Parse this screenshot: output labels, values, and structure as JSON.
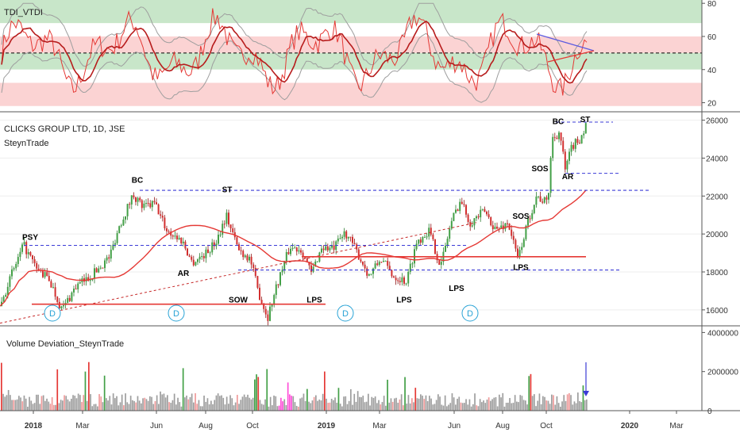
{
  "chart_data": [
    {
      "type": "line",
      "title": "TDI_VTDI",
      "y_ticks": [
        20,
        40,
        60,
        80
      ],
      "ylim": [
        15,
        82
      ],
      "bands": [
        {
          "from": 68,
          "to": 82,
          "color": "#c8e6c9"
        },
        {
          "from": 60,
          "to": 68,
          "color": "#ffffff"
        },
        {
          "from": 50,
          "to": 60,
          "color": "#fbd3d3"
        },
        {
          "from": 40,
          "to": 50,
          "color": "#c8e6c9"
        },
        {
          "from": 32,
          "to": 40,
          "color": "#ffffff"
        },
        {
          "from": 18,
          "to": 32,
          "color": "#fbd3d3"
        }
      ],
      "midline": 50
    },
    {
      "type": "candlestick",
      "title": "CLICKS GROUP LTD, 1D, JSE",
      "subtitle": "SteynTrade",
      "y_ticks": [
        16000,
        18000,
        20000,
        22000,
        24000,
        26000
      ],
      "ylim": [
        15200,
        26400
      ],
      "x_ticks": [
        "2018",
        "Mar",
        "Jun",
        "Aug",
        "Oct",
        "2019",
        "Mar",
        "Jun",
        "Aug",
        "Oct",
        "2020",
        "Mar"
      ],
      "price_path": [
        [
          0,
          16200
        ],
        [
          12,
          17600
        ],
        [
          30,
          19400
        ],
        [
          45,
          18200
        ],
        [
          62,
          17600
        ],
        [
          78,
          16000
        ],
        [
          95,
          17200
        ],
        [
          115,
          17800
        ],
        [
          138,
          18800
        ],
        [
          150,
          20400
        ],
        [
          168,
          22100
        ],
        [
          180,
          21400
        ],
        [
          195,
          21600
        ],
        [
          210,
          20200
        ],
        [
          230,
          19600
        ],
        [
          242,
          18500
        ],
        [
          260,
          19000
        ],
        [
          272,
          19600
        ],
        [
          285,
          21000
        ],
        [
          300,
          19200
        ],
        [
          315,
          18700
        ],
        [
          325,
          17000
        ],
        [
          337,
          15600
        ],
        [
          350,
          17500
        ],
        [
          365,
          19300
        ],
        [
          380,
          19200
        ],
        [
          392,
          17900
        ],
        [
          405,
          19300
        ],
        [
          420,
          19200
        ],
        [
          435,
          20100
        ],
        [
          450,
          19000
        ],
        [
          465,
          17800
        ],
        [
          480,
          18700
        ],
        [
          495,
          17800
        ],
        [
          512,
          17500
        ],
        [
          525,
          19600
        ],
        [
          540,
          20200
        ],
        [
          555,
          18300
        ],
        [
          568,
          20600
        ],
        [
          580,
          21800
        ],
        [
          592,
          20600
        ],
        [
          610,
          21200
        ],
        [
          625,
          20200
        ],
        [
          640,
          20600
        ],
        [
          652,
          18700
        ],
        [
          664,
          20500
        ],
        [
          675,
          22000
        ],
        [
          690,
          21600
        ],
        [
          695,
          25000
        ],
        [
          705,
          25400
        ],
        [
          712,
          23300
        ],
        [
          720,
          24600
        ],
        [
          730,
          25000
        ],
        [
          738,
          25700
        ]
      ],
      "lines": [
        {
          "name": "PSY/ST level",
          "y": 19400,
          "style": "dashed",
          "color": "#3b3bd6"
        },
        {
          "name": "BC level",
          "y": 22300,
          "style": "dashed",
          "color": "#3b3bd6"
        },
        {
          "name": "LPS level",
          "y": 18100,
          "style": "dashed",
          "color": "#3b3bd6"
        },
        {
          "name": "support",
          "y": 16300,
          "style": "solid",
          "color": "#e53935"
        },
        {
          "name": "range mid",
          "y": 18800,
          "style": "solid",
          "color": "#e53935"
        }
      ],
      "annotations": [
        {
          "label": "PSY",
          "x": 38,
          "y": 19700
        },
        {
          "label": "BC",
          "x": 173,
          "y": 22700
        },
        {
          "label": "ST",
          "x": 286,
          "y": 22200
        },
        {
          "label": "AR",
          "x": 231,
          "y": 17800
        },
        {
          "label": "SOW",
          "x": 300,
          "y": 16400
        },
        {
          "label": "LPS",
          "x": 396,
          "y": 16400
        },
        {
          "label": "LPS",
          "x": 509,
          "y": 16400
        },
        {
          "label": "LPS",
          "x": 575,
          "y": 17000
        },
        {
          "label": "LPS",
          "x": 656,
          "y": 18100
        },
        {
          "label": "SOS",
          "x": 656,
          "y": 20800
        },
        {
          "label": "SOS",
          "x": 680,
          "y": 23300
        },
        {
          "label": "AR",
          "x": 715,
          "y": 22900
        },
        {
          "label": "BC",
          "x": 703,
          "y": 25800
        },
        {
          "label": "ST",
          "x": 737,
          "y": 25900
        }
      ],
      "markers": [
        {
          "label": "D",
          "x": 66
        },
        {
          "label": "D",
          "x": 222
        },
        {
          "label": "D",
          "x": 435
        },
        {
          "label": "D",
          "x": 592
        }
      ]
    },
    {
      "type": "bar",
      "title": "Volume Deviation_SteynTrade",
      "y_ticks": [
        "0",
        "2000000",
        "4000000"
      ],
      "ylim": [
        0,
        4300000
      ]
    }
  ]
}
